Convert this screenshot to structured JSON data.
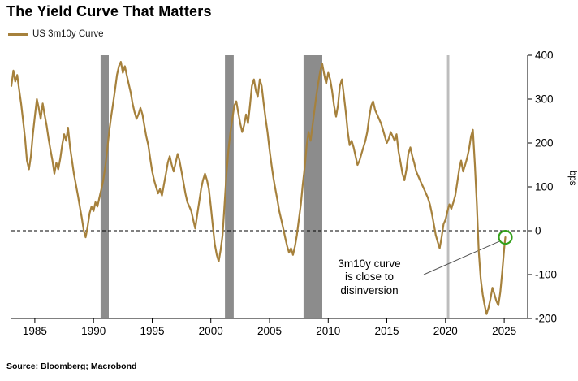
{
  "title": "The Yield Curve That Matters",
  "legend": {
    "label": "US 3m10y Curve"
  },
  "source": "Source: Bloomberg; Macrobond",
  "annotation": {
    "text": "3m10y curve\nis close to\ndisinversion"
  },
  "chart_data": {
    "type": "line",
    "title": "The Yield Curve That Matters",
    "ylabel": "bps",
    "xlim": [
      1983,
      2027
    ],
    "ylim": [
      -200,
      400
    ],
    "x_ticks": [
      1985,
      1990,
      1995,
      2000,
      2005,
      2010,
      2015,
      2020,
      2025
    ],
    "y_ticks": [
      400,
      300,
      200,
      100,
      0,
      -100,
      -200
    ],
    "zero_line": true,
    "grid": false,
    "legend_position": "top-left",
    "recession_bands": [
      {
        "from": 1990.6,
        "to": 1991.3,
        "color": "#8c8c8c"
      },
      {
        "from": 2001.2,
        "to": 2001.95,
        "color": "#8c8c8c"
      },
      {
        "from": 2007.9,
        "to": 2009.5,
        "color": "#8c8c8c"
      },
      {
        "from": 2020.12,
        "to": 2020.32,
        "color": "#bdbdbd"
      }
    ],
    "highlight": {
      "x": 2025.1,
      "y": -15,
      "radius": 8,
      "color": "#35a01c"
    },
    "series": [
      {
        "name": "US 3m10y Curve",
        "color": "#A6813C",
        "points": [
          [
            1983.0,
            330
          ],
          [
            1983.17,
            365
          ],
          [
            1983.33,
            340
          ],
          [
            1983.5,
            355
          ],
          [
            1983.67,
            320
          ],
          [
            1983.83,
            290
          ],
          [
            1984.0,
            250
          ],
          [
            1984.17,
            210
          ],
          [
            1984.33,
            160
          ],
          [
            1984.5,
            140
          ],
          [
            1984.67,
            170
          ],
          [
            1984.83,
            220
          ],
          [
            1985.0,
            260
          ],
          [
            1985.17,
            300
          ],
          [
            1985.33,
            280
          ],
          [
            1985.5,
            255
          ],
          [
            1985.67,
            290
          ],
          [
            1985.83,
            265
          ],
          [
            1986.0,
            240
          ],
          [
            1986.17,
            210
          ],
          [
            1986.33,
            185
          ],
          [
            1986.5,
            160
          ],
          [
            1986.67,
            130
          ],
          [
            1986.83,
            155
          ],
          [
            1987.0,
            140
          ],
          [
            1987.17,
            165
          ],
          [
            1987.33,
            195
          ],
          [
            1987.5,
            220
          ],
          [
            1987.67,
            205
          ],
          [
            1987.83,
            235
          ],
          [
            1988.0,
            190
          ],
          [
            1988.17,
            160
          ],
          [
            1988.33,
            130
          ],
          [
            1988.5,
            105
          ],
          [
            1988.67,
            80
          ],
          [
            1988.83,
            55
          ],
          [
            1989.0,
            30
          ],
          [
            1989.17,
            0
          ],
          [
            1989.33,
            -15
          ],
          [
            1989.5,
            10
          ],
          [
            1989.67,
            40
          ],
          [
            1989.83,
            55
          ],
          [
            1990.0,
            45
          ],
          [
            1990.17,
            65
          ],
          [
            1990.33,
            55
          ],
          [
            1990.5,
            75
          ],
          [
            1990.67,
            95
          ],
          [
            1990.83,
            115
          ],
          [
            1991.0,
            145
          ],
          [
            1991.17,
            185
          ],
          [
            1991.33,
            225
          ],
          [
            1991.5,
            260
          ],
          [
            1991.67,
            290
          ],
          [
            1991.83,
            320
          ],
          [
            1992.0,
            355
          ],
          [
            1992.17,
            375
          ],
          [
            1992.33,
            385
          ],
          [
            1992.5,
            360
          ],
          [
            1992.67,
            375
          ],
          [
            1992.83,
            355
          ],
          [
            1993.0,
            335
          ],
          [
            1993.17,
            315
          ],
          [
            1993.33,
            290
          ],
          [
            1993.5,
            270
          ],
          [
            1993.67,
            255
          ],
          [
            1993.83,
            265
          ],
          [
            1994.0,
            280
          ],
          [
            1994.17,
            265
          ],
          [
            1994.33,
            240
          ],
          [
            1994.5,
            215
          ],
          [
            1994.67,
            195
          ],
          [
            1994.83,
            165
          ],
          [
            1995.0,
            135
          ],
          [
            1995.17,
            115
          ],
          [
            1995.33,
            100
          ],
          [
            1995.5,
            85
          ],
          [
            1995.67,
            95
          ],
          [
            1995.83,
            80
          ],
          [
            1996.0,
            105
          ],
          [
            1996.17,
            130
          ],
          [
            1996.33,
            155
          ],
          [
            1996.5,
            170
          ],
          [
            1996.67,
            150
          ],
          [
            1996.83,
            135
          ],
          [
            1997.0,
            155
          ],
          [
            1997.17,
            175
          ],
          [
            1997.33,
            160
          ],
          [
            1997.5,
            135
          ],
          [
            1997.67,
            110
          ],
          [
            1997.83,
            85
          ],
          [
            1998.0,
            65
          ],
          [
            1998.17,
            55
          ],
          [
            1998.33,
            45
          ],
          [
            1998.5,
            25
          ],
          [
            1998.67,
            5
          ],
          [
            1998.83,
            35
          ],
          [
            1999.0,
            65
          ],
          [
            1999.17,
            95
          ],
          [
            1999.33,
            115
          ],
          [
            1999.5,
            130
          ],
          [
            1999.67,
            115
          ],
          [
            1999.83,
            95
          ],
          [
            2000.0,
            55
          ],
          [
            2000.17,
            10
          ],
          [
            2000.33,
            -30
          ],
          [
            2000.5,
            -55
          ],
          [
            2000.67,
            -70
          ],
          [
            2000.83,
            -45
          ],
          [
            2001.0,
            -10
          ],
          [
            2001.17,
            60
          ],
          [
            2001.33,
            130
          ],
          [
            2001.5,
            185
          ],
          [
            2001.67,
            225
          ],
          [
            2001.83,
            255
          ],
          [
            2002.0,
            285
          ],
          [
            2002.17,
            295
          ],
          [
            2002.33,
            270
          ],
          [
            2002.5,
            245
          ],
          [
            2002.67,
            225
          ],
          [
            2002.83,
            240
          ],
          [
            2003.0,
            265
          ],
          [
            2003.17,
            245
          ],
          [
            2003.33,
            285
          ],
          [
            2003.5,
            330
          ],
          [
            2003.67,
            345
          ],
          [
            2003.83,
            320
          ],
          [
            2004.0,
            305
          ],
          [
            2004.17,
            345
          ],
          [
            2004.33,
            330
          ],
          [
            2004.5,
            290
          ],
          [
            2004.67,
            255
          ],
          [
            2004.83,
            225
          ],
          [
            2005.0,
            185
          ],
          [
            2005.17,
            150
          ],
          [
            2005.33,
            120
          ],
          [
            2005.5,
            95
          ],
          [
            2005.67,
            70
          ],
          [
            2005.83,
            45
          ],
          [
            2006.0,
            25
          ],
          [
            2006.17,
            5
          ],
          [
            2006.33,
            -15
          ],
          [
            2006.5,
            -35
          ],
          [
            2006.67,
            -50
          ],
          [
            2006.83,
            -40
          ],
          [
            2007.0,
            -55
          ],
          [
            2007.17,
            -35
          ],
          [
            2007.33,
            -10
          ],
          [
            2007.5,
            25
          ],
          [
            2007.67,
            60
          ],
          [
            2007.83,
            105
          ],
          [
            2008.0,
            145
          ],
          [
            2008.17,
            195
          ],
          [
            2008.33,
            225
          ],
          [
            2008.5,
            205
          ],
          [
            2008.67,
            240
          ],
          [
            2008.83,
            275
          ],
          [
            2009.0,
            310
          ],
          [
            2009.17,
            340
          ],
          [
            2009.33,
            365
          ],
          [
            2009.5,
            380
          ],
          [
            2009.67,
            355
          ],
          [
            2009.83,
            335
          ],
          [
            2010.0,
            360
          ],
          [
            2010.17,
            345
          ],
          [
            2010.33,
            320
          ],
          [
            2010.5,
            285
          ],
          [
            2010.67,
            260
          ],
          [
            2010.83,
            285
          ],
          [
            2011.0,
            330
          ],
          [
            2011.17,
            345
          ],
          [
            2011.33,
            310
          ],
          [
            2011.5,
            270
          ],
          [
            2011.67,
            225
          ],
          [
            2011.83,
            195
          ],
          [
            2012.0,
            205
          ],
          [
            2012.17,
            190
          ],
          [
            2012.33,
            170
          ],
          [
            2012.5,
            150
          ],
          [
            2012.67,
            160
          ],
          [
            2012.83,
            175
          ],
          [
            2013.0,
            190
          ],
          [
            2013.17,
            205
          ],
          [
            2013.33,
            225
          ],
          [
            2013.5,
            260
          ],
          [
            2013.67,
            285
          ],
          [
            2013.83,
            295
          ],
          [
            2014.0,
            275
          ],
          [
            2014.17,
            265
          ],
          [
            2014.33,
            255
          ],
          [
            2014.5,
            245
          ],
          [
            2014.67,
            230
          ],
          [
            2014.83,
            215
          ],
          [
            2015.0,
            200
          ],
          [
            2015.17,
            210
          ],
          [
            2015.33,
            225
          ],
          [
            2015.5,
            215
          ],
          [
            2015.67,
            205
          ],
          [
            2015.83,
            220
          ],
          [
            2016.0,
            180
          ],
          [
            2016.17,
            155
          ],
          [
            2016.33,
            130
          ],
          [
            2016.5,
            115
          ],
          [
            2016.67,
            140
          ],
          [
            2016.83,
            175
          ],
          [
            2017.0,
            190
          ],
          [
            2017.17,
            170
          ],
          [
            2017.33,
            155
          ],
          [
            2017.5,
            135
          ],
          [
            2017.67,
            125
          ],
          [
            2017.83,
            115
          ],
          [
            2018.0,
            105
          ],
          [
            2018.17,
            95
          ],
          [
            2018.33,
            85
          ],
          [
            2018.5,
            75
          ],
          [
            2018.67,
            60
          ],
          [
            2018.83,
            40
          ],
          [
            2019.0,
            15
          ],
          [
            2019.17,
            -10
          ],
          [
            2019.33,
            -25
          ],
          [
            2019.5,
            -40
          ],
          [
            2019.67,
            -15
          ],
          [
            2019.83,
            15
          ],
          [
            2020.0,
            25
          ],
          [
            2020.17,
            45
          ],
          [
            2020.33,
            60
          ],
          [
            2020.5,
            50
          ],
          [
            2020.67,
            65
          ],
          [
            2020.83,
            80
          ],
          [
            2021.0,
            110
          ],
          [
            2021.17,
            140
          ],
          [
            2021.33,
            160
          ],
          [
            2021.5,
            135
          ],
          [
            2021.67,
            150
          ],
          [
            2021.83,
            165
          ],
          [
            2022.0,
            185
          ],
          [
            2022.17,
            215
          ],
          [
            2022.33,
            230
          ],
          [
            2022.5,
            150
          ],
          [
            2022.67,
            60
          ],
          [
            2022.83,
            -45
          ],
          [
            2023.0,
            -110
          ],
          [
            2023.17,
            -145
          ],
          [
            2023.33,
            -170
          ],
          [
            2023.5,
            -190
          ],
          [
            2023.67,
            -175
          ],
          [
            2023.83,
            -155
          ],
          [
            2024.0,
            -130
          ],
          [
            2024.17,
            -145
          ],
          [
            2024.33,
            -160
          ],
          [
            2024.5,
            -170
          ],
          [
            2024.67,
            -140
          ],
          [
            2024.83,
            -95
          ],
          [
            2025.0,
            -40
          ],
          [
            2025.1,
            -15
          ]
        ]
      }
    ]
  }
}
